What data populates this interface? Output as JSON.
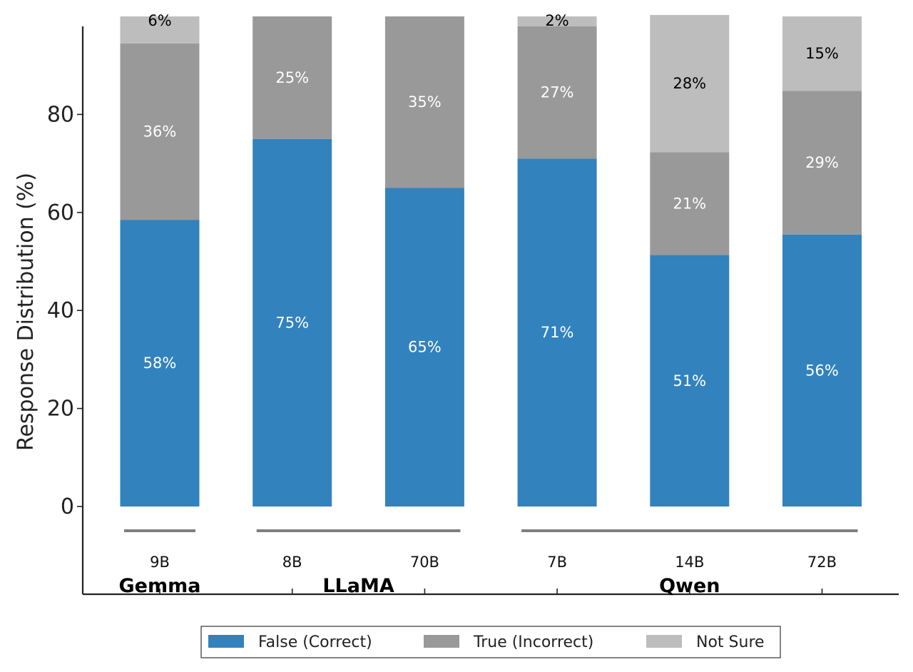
{
  "chart_data": {
    "type": "bar",
    "stacked": true,
    "ylabel": "Response Distribution (%)",
    "yticks": [
      0,
      20,
      40,
      60,
      80
    ],
    "ylim": [
      -18,
      98
    ],
    "categories": [
      "9B",
      "8B",
      "70B",
      "7B",
      "14B",
      "72B"
    ],
    "groups": [
      {
        "name": "Gemma",
        "members": [
          "9B"
        ]
      },
      {
        "name": "LLaMA",
        "members": [
          "8B",
          "70B"
        ]
      },
      {
        "name": "Qwen",
        "members": [
          "7B",
          "14B",
          "72B"
        ]
      }
    ],
    "series": [
      {
        "name": "False (Correct)",
        "color": "#3282bd",
        "label_color": "#ffffff",
        "values": [
          58.5,
          75.0,
          65.0,
          71.0,
          51.3,
          55.5
        ],
        "labels": [
          "58%",
          "75%",
          "65%",
          "71%",
          "51%",
          "56%"
        ]
      },
      {
        "name": "True (Incorrect)",
        "color": "#999999",
        "label_color": "#ffffff",
        "values": [
          36.0,
          25.0,
          35.0,
          27.0,
          21.0,
          29.3
        ],
        "labels": [
          "36%",
          "25%",
          "35%",
          "27%",
          "21%",
          "29%"
        ]
      },
      {
        "name": "Not Sure",
        "color": "#bdbdbd",
        "label_color": "#000000",
        "values": [
          5.5,
          0,
          0,
          2.0,
          28.0,
          15.2
        ],
        "labels": [
          "6%",
          "",
          "",
          "2%",
          "28%",
          "15%"
        ]
      }
    ],
    "legend_position": "bottom"
  }
}
